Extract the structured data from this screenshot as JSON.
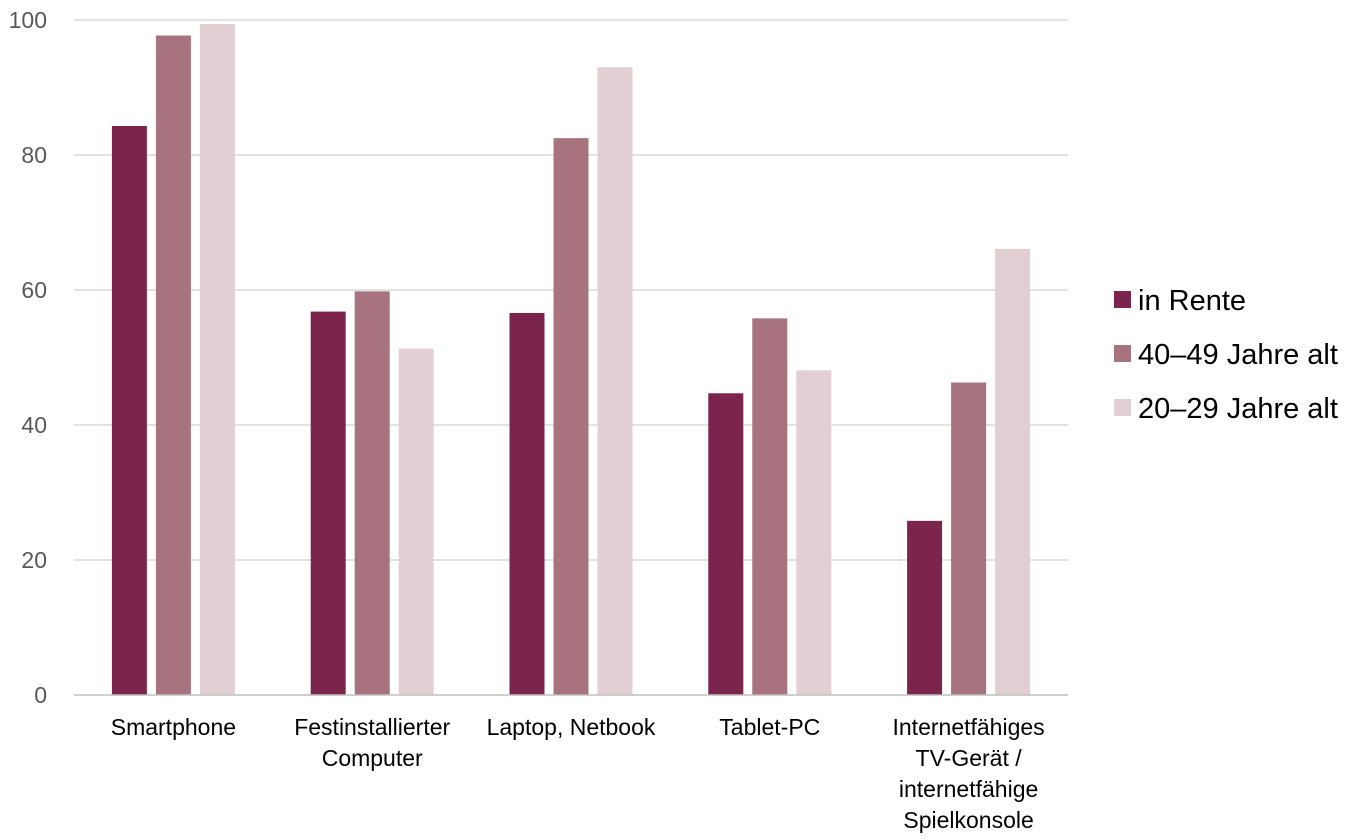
{
  "chart_data": {
    "type": "bar",
    "categories": [
      "Smartphone",
      "Festinstallierter Computer",
      "Laptop, Netbook",
      "Tablet-PC",
      "Internetfähiges TV-Gerät / internetfähige Spielkonsole"
    ],
    "category_label_lines": [
      [
        "Smartphone"
      ],
      [
        "Festinstallierter",
        "Computer"
      ],
      [
        "Laptop, Netbook"
      ],
      [
        "Tablet-PC"
      ],
      [
        "Internetfähiges",
        "TV-Gerät /",
        "internetfähige",
        "Spielkonsole"
      ]
    ],
    "series": [
      {
        "name": "in Rente",
        "color": "#7B244C",
        "values": [
          84.3,
          56.8,
          56.6,
          44.7,
          25.8
        ]
      },
      {
        "name": "40–49 Jahre alt",
        "color": "#A6737E",
        "values": [
          97.7,
          59.8,
          82.5,
          55.8,
          46.3
        ]
      },
      {
        "name": "20–29 Jahre alt",
        "color": "#E1CFD3",
        "values": [
          99.4,
          51.3,
          93.0,
          48.1,
          66.1
        ]
      }
    ],
    "y_ticks": [
      0,
      20,
      40,
      60,
      80,
      100
    ],
    "ylim": [
      0,
      100
    ],
    "title": "",
    "xlabel": "",
    "ylabel": "",
    "grid": true,
    "legend_position": "right"
  }
}
